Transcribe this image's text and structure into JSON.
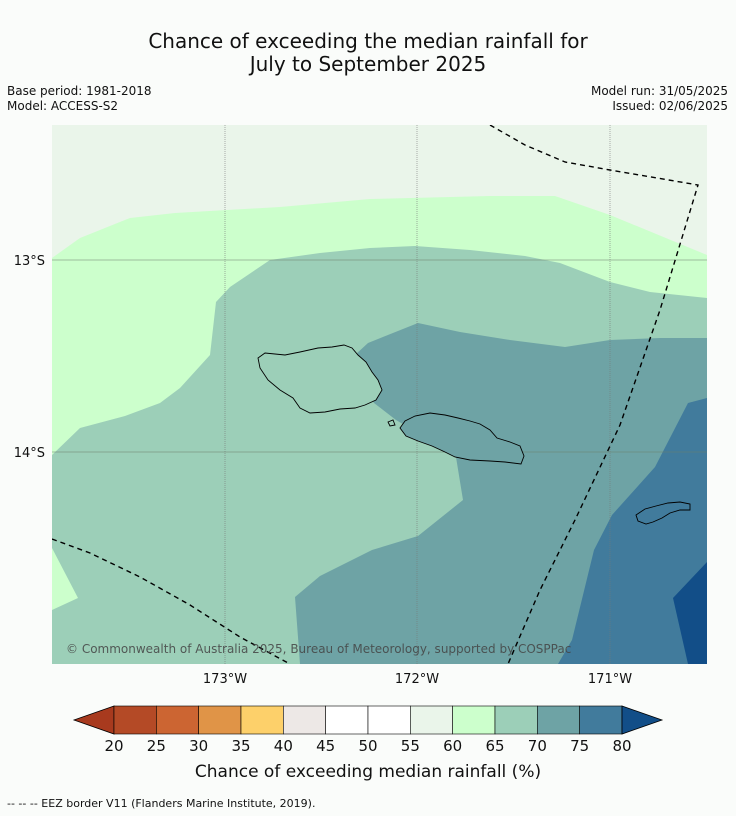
{
  "title_line1": "Chance of exceeding the median rainfall for",
  "title_line2": "July to September 2025",
  "meta_left": [
    "Base period: 1981-2018",
    "Model: ACCESS-S2"
  ],
  "meta_right": [
    "Model run: 31/05/2025",
    "Issued: 02/06/2025"
  ],
  "map": {
    "lat_labels": [
      "13°S",
      "14°S"
    ],
    "lon_labels": [
      "173°W",
      "172°W",
      "171°W"
    ],
    "copyright": "© Commonwealth of Australia 2025, Bureau of Meteorology, supported by COSPPac"
  },
  "colorbar": {
    "ticks": [
      "20",
      "25",
      "30",
      "35",
      "40",
      "45",
      "50",
      "55",
      "60",
      "65",
      "70",
      "75",
      "80"
    ],
    "colors": [
      "#a83a1e",
      "#b44a26",
      "#cc6532",
      "#e09447",
      "#fdd06a",
      "#ede8e6",
      "#ffffff",
      "#ffffff",
      "#eaf5ea",
      "#ccffcc",
      "#9ccfb8",
      "#6ea3a5",
      "#417b9c",
      "#124e88"
    ],
    "label": "Chance of exceeding median rainfall (%)"
  },
  "footnote": "--  --  -- EEZ border V11 (Flanders Marine Institute, 2019)."
}
